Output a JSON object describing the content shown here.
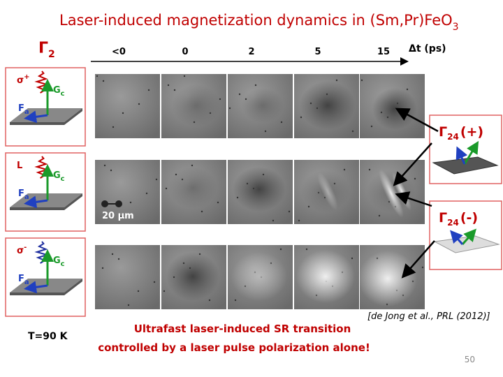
{
  "title": {
    "text": "Laser-induced magnetization dynamics in (Sm,Pr)FeO",
    "sub": "3"
  },
  "initial_phase": {
    "symbol": "Γ",
    "sub": "2"
  },
  "time_axis": {
    "labels": [
      "<0",
      "0",
      "2",
      "5",
      "15"
    ],
    "unit_label": "Δt (ps)"
  },
  "rows": [
    {
      "polarization": {
        "symbol": "σ",
        "sup": "+"
      },
      "g_label": {
        "symbol": "G",
        "sub": "c"
      },
      "f_label": {
        "symbol": "F",
        "sub": "a"
      }
    },
    {
      "polarization": {
        "symbol": "L"
      },
      "g_label": {
        "symbol": "G",
        "sub": "c"
      },
      "f_label": {
        "symbol": "F",
        "sub": "a"
      }
    },
    {
      "polarization": {
        "symbol": "σ",
        "sup": "-"
      },
      "g_label": {
        "symbol": "G",
        "sub": "c"
      },
      "f_label": {
        "symbol": "F",
        "sub": "a"
      }
    }
  ],
  "scale_bar": "20 μm",
  "final_phases": [
    {
      "symbol": "Γ",
      "sub": "24",
      "suffix": "(+)"
    },
    {
      "symbol": "Γ",
      "sub": "24",
      "suffix": "(-)"
    }
  ],
  "temperature": "T=90 K",
  "caption": [
    "Ultrafast laser-induced SR transition",
    "controlled by a laser pulse polarization alone!"
  ],
  "citation": "[de Jong et al., PRL (2012)]",
  "page_number": "50"
}
